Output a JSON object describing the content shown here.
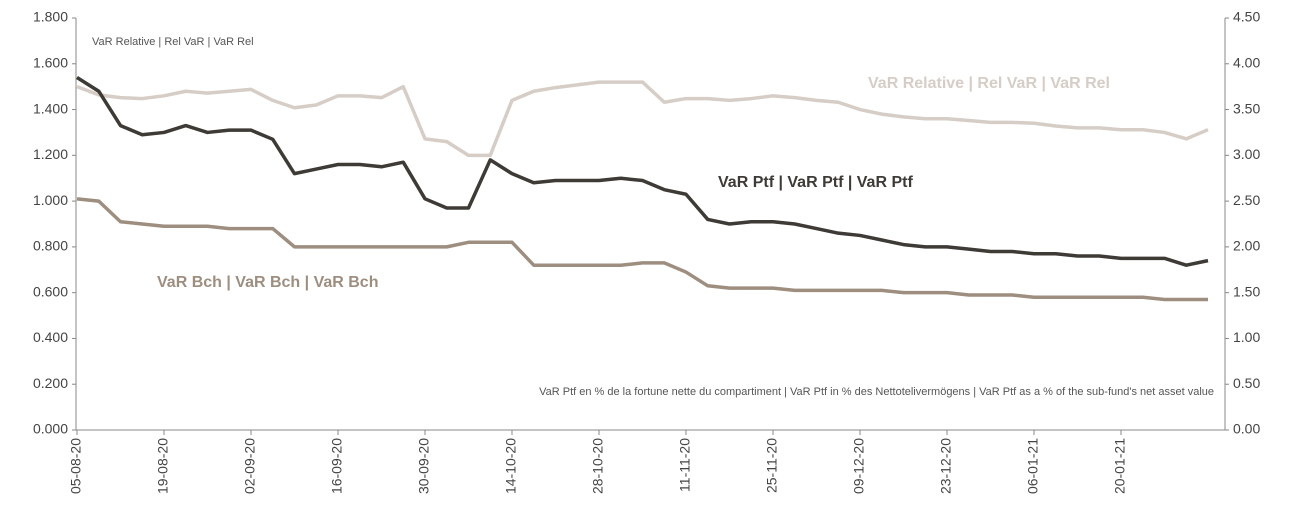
{
  "chart_data": {
    "type": "line",
    "title": "VaR Relative | Rel VaR | VaR Rel",
    "annotations": [
      "VaR Ptf en % de la fortune nette du compartiment | VaR Ptf in % des Nettotelivermögens | VaR Ptf as a % of the sub-fund's net asset value"
    ],
    "categories": [
      "05-08-20",
      null,
      null,
      null,
      "19-08-20",
      null,
      null,
      null,
      "02-09-20",
      null,
      null,
      null,
      "16-09-20",
      null,
      null,
      null,
      "30-09-20",
      null,
      null,
      null,
      "14-10-20",
      null,
      null,
      null,
      "28-10-20",
      null,
      null,
      null,
      "11-11-20",
      null,
      null,
      null,
      "25-11-20",
      null,
      null,
      null,
      "09-12-20",
      null,
      null,
      null,
      "23-12-20",
      null,
      null,
      null,
      "06-01-21",
      null,
      null,
      null,
      "20-01-21",
      null,
      null,
      null,
      null
    ],
    "series": [
      {
        "name": "VaR Relative | Rel VaR | VaR Rel",
        "color": "#d6cdc6",
        "axis": "y2",
        "values": [
          3.75,
          3.66,
          3.63,
          3.62,
          3.65,
          3.7,
          3.68,
          3.7,
          3.72,
          3.6,
          3.52,
          3.55,
          3.65,
          3.65,
          3.63,
          3.75,
          3.18,
          3.15,
          3.0,
          3.0,
          3.6,
          3.7,
          3.74,
          3.77,
          3.8,
          3.8,
          3.8,
          3.58,
          3.62,
          3.62,
          3.6,
          3.62,
          3.65,
          3.63,
          3.6,
          3.58,
          3.5,
          3.45,
          3.42,
          3.4,
          3.4,
          3.38,
          3.36,
          3.36,
          3.35,
          3.32,
          3.3,
          3.3,
          3.28,
          3.28,
          3.25,
          3.18,
          3.28
        ]
      },
      {
        "name": "VaR Ptf | VaR Ptf | VaR Ptf",
        "color": "#3e3a36",
        "values": [
          1.54,
          1.48,
          1.33,
          1.29,
          1.3,
          1.33,
          1.3,
          1.31,
          1.31,
          1.27,
          1.12,
          1.14,
          1.16,
          1.16,
          1.15,
          1.17,
          1.01,
          0.97,
          0.97,
          1.18,
          1.12,
          1.08,
          1.09,
          1.09,
          1.09,
          1.1,
          1.09,
          1.05,
          1.03,
          0.92,
          0.9,
          0.91,
          0.91,
          0.9,
          0.88,
          0.86,
          0.85,
          0.83,
          0.81,
          0.8,
          0.8,
          0.79,
          0.78,
          0.78,
          0.77,
          0.77,
          0.76,
          0.76,
          0.75,
          0.75,
          0.75,
          0.72,
          0.74
        ]
      },
      {
        "name": "VaR Bch | VaR Bch | VaR Bch",
        "color": "#9e8e80",
        "values": [
          1.01,
          1.0,
          0.91,
          0.9,
          0.89,
          0.89,
          0.89,
          0.88,
          0.88,
          0.88,
          0.8,
          0.8,
          0.8,
          0.8,
          0.8,
          0.8,
          0.8,
          0.8,
          0.82,
          0.82,
          0.82,
          0.72,
          0.72,
          0.72,
          0.72,
          0.72,
          0.73,
          0.73,
          0.69,
          0.63,
          0.62,
          0.62,
          0.62,
          0.61,
          0.61,
          0.61,
          0.61,
          0.61,
          0.6,
          0.6,
          0.6,
          0.59,
          0.59,
          0.59,
          0.58,
          0.58,
          0.58,
          0.58,
          0.58,
          0.58,
          0.57,
          0.57,
          0.57
        ]
      }
    ],
    "ylim": [
      0,
      1.8
    ],
    "yticks": [
      {
        "value": 0,
        "label": "0.000"
      },
      {
        "value": 0.2,
        "label": "0.200"
      },
      {
        "value": 0.4,
        "label": "0.400"
      },
      {
        "value": 0.6,
        "label": "0.600"
      },
      {
        "value": 0.8,
        "label": "0.800"
      },
      {
        "value": 1,
        "label": "1.000"
      },
      {
        "value": 1.2,
        "label": "1.200"
      },
      {
        "value": 1.4,
        "label": "1.400"
      },
      {
        "value": 1.6,
        "label": "1.600"
      },
      {
        "value": 1.8,
        "label": "1.800"
      }
    ],
    "y2lim": [
      0,
      4.5
    ],
    "y2ticks": [
      {
        "value": 0,
        "label": "0.00"
      },
      {
        "value": 0.5,
        "label": "0.50"
      },
      {
        "value": 1,
        "label": "1.00"
      },
      {
        "value": 1.5,
        "label": "1.50"
      },
      {
        "value": 2,
        "label": "2.00"
      },
      {
        "value": 2.5,
        "label": "2.50"
      },
      {
        "value": 3,
        "label": "3.00"
      },
      {
        "value": 3.5,
        "label": "3.50"
      },
      {
        "value": 4,
        "label": "4.00"
      },
      {
        "value": 4.5,
        "label": "4.50"
      }
    ],
    "grid": false
  }
}
